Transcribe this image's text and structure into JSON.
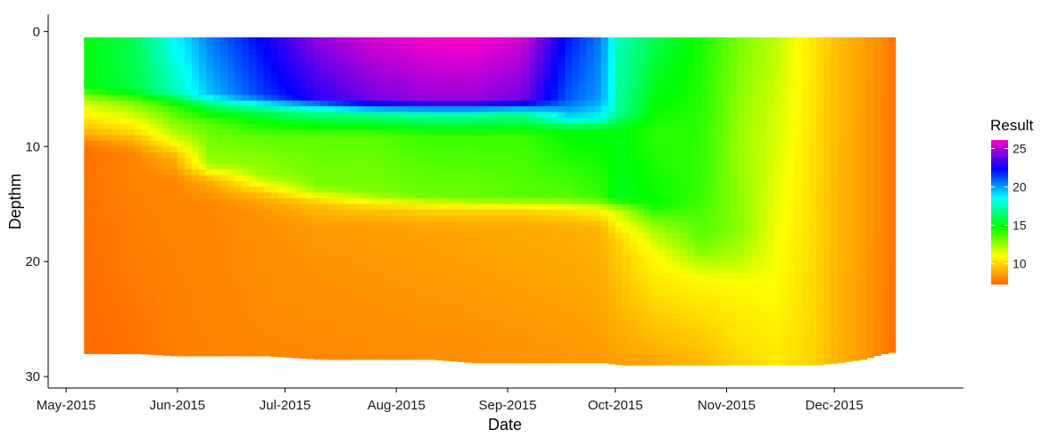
{
  "chart_data": {
    "type": "heatmap",
    "title": "",
    "xlabel": "Date",
    "ylabel": "Depthm",
    "x_ticks": [
      "May-2015",
      "Jun-2015",
      "Jul-2015",
      "Aug-2015",
      "Sep-2015",
      "Oct-2015",
      "Nov-2015",
      "Dec-2015"
    ],
    "x_range": [
      "2015-04-26",
      "2016-01-06"
    ],
    "y_ticks": [
      0,
      10,
      20,
      30
    ],
    "y_range": [
      -1.5,
      31
    ],
    "y_reversed": true,
    "colorbar": {
      "title": "Result",
      "ticks": [
        10,
        15,
        20,
        25
      ],
      "range": [
        7.3,
        26.1
      ],
      "colors": [
        "#ff6a00",
        "#ffff00",
        "#00ff00",
        "#00ffff",
        "#0000ff",
        "#ff00c8"
      ]
    },
    "data_x_range": [
      "2015-05-06",
      "2015-12-18"
    ],
    "profiles": [
      {
        "date": "2015-05-06",
        "bottom": 28.0,
        "knots": [
          [
            0.5,
            15
          ],
          [
            4.8,
            15
          ],
          [
            6,
            12
          ],
          [
            8.5,
            9.5
          ],
          [
            10,
            7.5
          ],
          [
            28,
            7.3
          ]
        ]
      },
      {
        "date": "2015-05-20",
        "bottom": 28.0,
        "knots": [
          [
            0.5,
            16
          ],
          [
            5,
            15.8
          ],
          [
            6.2,
            13
          ],
          [
            8.8,
            10
          ],
          [
            10.5,
            8
          ],
          [
            28,
            7.5
          ]
        ]
      },
      {
        "date": "2015-05-31",
        "bottom": 28.2,
        "knots": [
          [
            0.5,
            18.5
          ],
          [
            5.2,
            17.5
          ],
          [
            6.5,
            14
          ],
          [
            9,
            12
          ],
          [
            11,
            9
          ],
          [
            13,
            8
          ],
          [
            28.2,
            7.8
          ]
        ]
      },
      {
        "date": "2015-06-10",
        "bottom": 28.2,
        "knots": [
          [
            0.5,
            20.5
          ],
          [
            5.5,
            19.5
          ],
          [
            6.5,
            16
          ],
          [
            8,
            13.5
          ],
          [
            11.5,
            12.5
          ],
          [
            13,
            9
          ],
          [
            15,
            8
          ],
          [
            28.2,
            7.9
          ]
        ]
      },
      {
        "date": "2015-06-25",
        "bottom": 28.2,
        "knots": [
          [
            0.5,
            22.5
          ],
          [
            5.6,
            21.5
          ],
          [
            7,
            16
          ],
          [
            9,
            13.5
          ],
          [
            12.5,
            12.5
          ],
          [
            14.5,
            9
          ],
          [
            16,
            8.3
          ],
          [
            28.2,
            8.0
          ]
        ]
      },
      {
        "date": "2015-07-10",
        "bottom": 28.5,
        "knots": [
          [
            0.5,
            24.5
          ],
          [
            5.8,
            23
          ],
          [
            7,
            17
          ],
          [
            9,
            13.5
          ],
          [
            13.5,
            13
          ],
          [
            15,
            9.5
          ],
          [
            17,
            8.5
          ],
          [
            28.5,
            8.0
          ]
        ]
      },
      {
        "date": "2015-07-25",
        "bottom": 28.5,
        "knots": [
          [
            0.5,
            25.5
          ],
          [
            6,
            24
          ],
          [
            7.2,
            17
          ],
          [
            9,
            13.5
          ],
          [
            14,
            13
          ],
          [
            15.5,
            9.5
          ],
          [
            17,
            8.6
          ],
          [
            28.5,
            8.1
          ]
        ]
      },
      {
        "date": "2015-08-10",
        "bottom": 28.5,
        "knots": [
          [
            0.5,
            26
          ],
          [
            6,
            24.5
          ],
          [
            7.2,
            17.5
          ],
          [
            9,
            14
          ],
          [
            14.3,
            13.2
          ],
          [
            15.5,
            10
          ],
          [
            17,
            8.7
          ],
          [
            28.5,
            8.2
          ]
        ]
      },
      {
        "date": "2015-08-22",
        "bottom": 28.8,
        "knots": [
          [
            0.5,
            26.1
          ],
          [
            6,
            24.5
          ],
          [
            7.2,
            17.5
          ],
          [
            9,
            14
          ],
          [
            14.5,
            13.2
          ],
          [
            15.5,
            10
          ],
          [
            17,
            8.8
          ],
          [
            28.8,
            8.2
          ]
        ]
      },
      {
        "date": "2015-09-05",
        "bottom": 28.8,
        "knots": [
          [
            0.5,
            25.5
          ],
          [
            6,
            24
          ],
          [
            7.2,
            17
          ],
          [
            9,
            14
          ],
          [
            14.5,
            13.5
          ],
          [
            15.5,
            10
          ],
          [
            17,
            8.9
          ],
          [
            28.8,
            8.3
          ]
        ]
      },
      {
        "date": "2015-09-18",
        "bottom": 28.8,
        "knots": [
          [
            0.5,
            22
          ],
          [
            6,
            21
          ],
          [
            7.5,
            19
          ],
          [
            8.5,
            15
          ],
          [
            14.5,
            13.5
          ],
          [
            15.5,
            10.5
          ],
          [
            17,
            9
          ],
          [
            28.8,
            8.4
          ]
        ]
      },
      {
        "date": "2015-09-27",
        "bottom": 28.8,
        "knots": [
          [
            0.5,
            20.5
          ],
          [
            6,
            20
          ],
          [
            7.5,
            18.5
          ],
          [
            8.5,
            15
          ],
          [
            14.5,
            14
          ],
          [
            15.5,
            11
          ],
          [
            17,
            9.2
          ],
          [
            28.8,
            8.5
          ]
        ]
      },
      {
        "date": "2015-10-02",
        "bottom": 29.0,
        "knots": [
          [
            0.5,
            17.5
          ],
          [
            7,
            17
          ],
          [
            8.5,
            15
          ],
          [
            14.5,
            15.2
          ],
          [
            15.5,
            12
          ],
          [
            18,
            10
          ],
          [
            29,
            8.6
          ]
        ]
      },
      {
        "date": "2015-10-12",
        "bottom": 29.0,
        "knots": [
          [
            0.5,
            16
          ],
          [
            6,
            15
          ],
          [
            9,
            14.2
          ],
          [
            15,
            14.8
          ],
          [
            17,
            12.5
          ],
          [
            19.5,
            11
          ],
          [
            29,
            8.8
          ]
        ]
      },
      {
        "date": "2015-10-25",
        "bottom": 29.0,
        "knots": [
          [
            0.5,
            14.5
          ],
          [
            8,
            14.2
          ],
          [
            14,
            14
          ],
          [
            17.5,
            13.5
          ],
          [
            19,
            13
          ],
          [
            21.5,
            11
          ],
          [
            29,
            9.2
          ]
        ]
      },
      {
        "date": "2015-11-05",
        "bottom": 29.0,
        "knots": [
          [
            0.5,
            13
          ],
          [
            10,
            12.5
          ],
          [
            17,
            12.8
          ],
          [
            20,
            12
          ],
          [
            22,
            11
          ],
          [
            29,
            10
          ]
        ]
      },
      {
        "date": "2015-11-15",
        "bottom": 29.0,
        "knots": [
          [
            0.5,
            12
          ],
          [
            12,
            11.5
          ],
          [
            22,
            11
          ],
          [
            29,
            10.5
          ]
        ]
      },
      {
        "date": "2015-11-25",
        "bottom": 29.0,
        "knots": [
          [
            0.5,
            10.5
          ],
          [
            29,
            10
          ]
        ]
      },
      {
        "date": "2015-12-01",
        "bottom": 28.8,
        "knots": [
          [
            0.5,
            9.5
          ],
          [
            29,
            9.2
          ]
        ]
      },
      {
        "date": "2015-12-08",
        "bottom": 28.5,
        "knots": [
          [
            0.5,
            8.8
          ],
          [
            29,
            8.6
          ]
        ]
      },
      {
        "date": "2015-12-14",
        "bottom": 28.0,
        "knots": [
          [
            0.5,
            8.2
          ],
          [
            29,
            8.0
          ]
        ]
      },
      {
        "date": "2015-12-18",
        "bottom": 27.8,
        "knots": [
          [
            0.5,
            7.5
          ],
          [
            29,
            7.4
          ]
        ]
      }
    ]
  }
}
